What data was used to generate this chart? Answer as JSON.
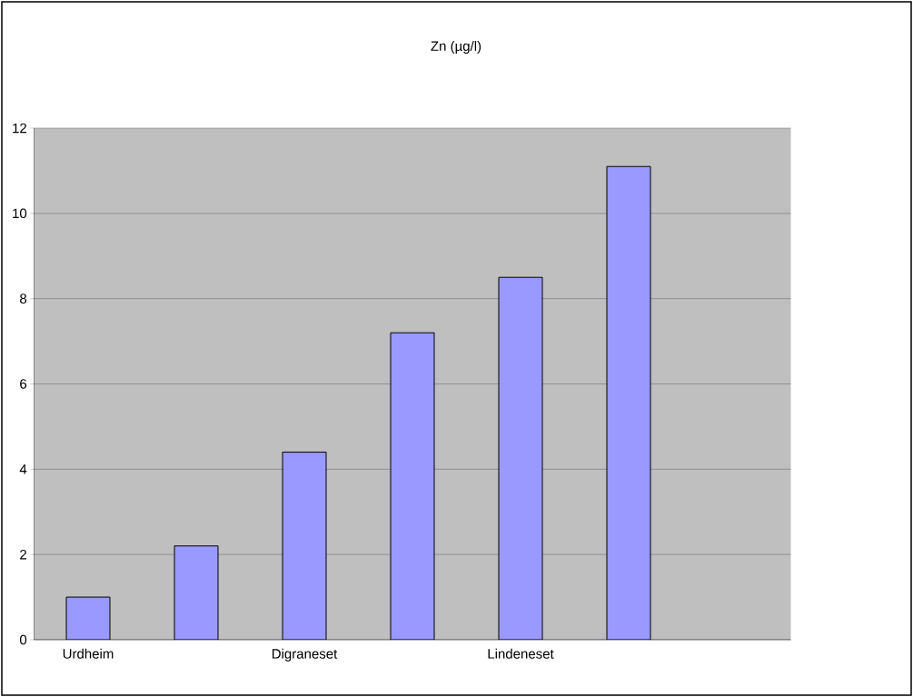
{
  "chart_data": {
    "type": "bar",
    "title": "Zn (µg/l)",
    "categories": [
      "Urdheim",
      null,
      "Digraneset",
      null,
      "Lindeneset",
      null,
      null
    ],
    "values": [
      1.0,
      2.2,
      4.4,
      7.2,
      8.5,
      11.1,
      null
    ],
    "color": "#9999ff",
    "ylim": [
      0,
      12
    ],
    "yticks": [
      0,
      2,
      4,
      6,
      8,
      10,
      12
    ],
    "grid": "y"
  }
}
